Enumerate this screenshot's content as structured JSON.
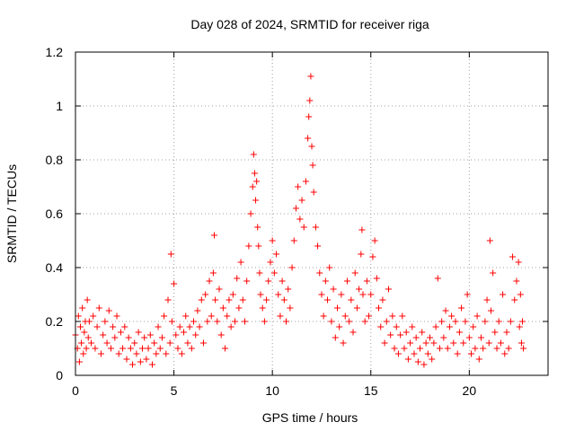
{
  "chart_data": {
    "type": "scatter",
    "title": "Day 028 of 2024, SRMTID for receiver riga",
    "xlabel": "GPS time / hours",
    "ylabel": "SRMTID / TECUs",
    "xlim": [
      0,
      24
    ],
    "ylim": [
      0,
      1.2
    ],
    "xticks": [
      0,
      5,
      10,
      15,
      20
    ],
    "xtick_labels": [
      "0",
      "5",
      "10",
      "15",
      "20"
    ],
    "yticks": [
      0,
      0.2,
      0.4,
      0.6,
      0.8,
      1,
      1.2
    ],
    "ytick_labels": [
      "0",
      "0.2",
      "0.4",
      "0.6",
      "0.8",
      "1",
      "1.2"
    ],
    "grid": true,
    "marker": "+",
    "color": "#ff0000",
    "series": [
      {
        "name": "SRMTID",
        "points": [
          [
            0.0,
            0.15
          ],
          [
            0.1,
            0.1
          ],
          [
            0.15,
            0.22
          ],
          [
            0.2,
            0.05
          ],
          [
            0.25,
            0.18
          ],
          [
            0.3,
            0.12
          ],
          [
            0.35,
            0.25
          ],
          [
            0.4,
            0.08
          ],
          [
            0.45,
            0.16
          ],
          [
            0.5,
            0.2
          ],
          [
            0.55,
            0.1
          ],
          [
            0.6,
            0.28
          ],
          [
            0.65,
            0.14
          ],
          [
            0.7,
            0.2
          ],
          [
            0.8,
            0.12
          ],
          [
            0.9,
            0.22
          ],
          [
            1.0,
            0.1
          ],
          [
            1.1,
            0.18
          ],
          [
            1.2,
            0.25
          ],
          [
            1.3,
            0.08
          ],
          [
            1.4,
            0.15
          ],
          [
            1.5,
            0.2
          ],
          [
            1.6,
            0.12
          ],
          [
            1.7,
            0.24
          ],
          [
            1.8,
            0.1
          ],
          [
            1.9,
            0.18
          ],
          [
            2.0,
            0.14
          ],
          [
            2.1,
            0.22
          ],
          [
            2.2,
            0.08
          ],
          [
            2.3,
            0.16
          ],
          [
            2.4,
            0.1
          ],
          [
            2.5,
            0.18
          ],
          [
            2.6,
            0.06
          ],
          [
            2.7,
            0.14
          ],
          [
            2.8,
            0.1
          ],
          [
            2.9,
            0.04
          ],
          [
            3.0,
            0.12
          ],
          [
            3.1,
            0.08
          ],
          [
            3.2,
            0.16
          ],
          [
            3.3,
            0.05
          ],
          [
            3.4,
            0.1
          ],
          [
            3.5,
            0.14
          ],
          [
            3.6,
            0.06
          ],
          [
            3.7,
            0.1
          ],
          [
            3.8,
            0.15
          ],
          [
            3.9,
            0.04
          ],
          [
            4.0,
            0.12
          ],
          [
            4.1,
            0.08
          ],
          [
            4.2,
            0.18
          ],
          [
            4.3,
            0.1
          ],
          [
            4.4,
            0.14
          ],
          [
            4.5,
            0.22
          ],
          [
            4.6,
            0.08
          ],
          [
            4.7,
            0.28
          ],
          [
            4.8,
            0.12
          ],
          [
            4.85,
            0.45
          ],
          [
            4.9,
            0.2
          ],
          [
            5.0,
            0.34
          ],
          [
            5.1,
            0.15
          ],
          [
            5.2,
            0.1
          ],
          [
            5.3,
            0.18
          ],
          [
            5.4,
            0.08
          ],
          [
            5.5,
            0.16
          ],
          [
            5.6,
            0.22
          ],
          [
            5.7,
            0.12
          ],
          [
            5.8,
            0.18
          ],
          [
            5.9,
            0.1
          ],
          [
            6.0,
            0.2
          ],
          [
            6.1,
            0.15
          ],
          [
            6.2,
            0.24
          ],
          [
            6.3,
            0.18
          ],
          [
            6.4,
            0.28
          ],
          [
            6.5,
            0.12
          ],
          [
            6.6,
            0.3
          ],
          [
            6.7,
            0.2
          ],
          [
            6.8,
            0.35
          ],
          [
            6.9,
            0.22
          ],
          [
            7.0,
            0.38
          ],
          [
            7.05,
            0.52
          ],
          [
            7.1,
            0.28
          ],
          [
            7.2,
            0.2
          ],
          [
            7.3,
            0.32
          ],
          [
            7.4,
            0.15
          ],
          [
            7.5,
            0.25
          ],
          [
            7.6,
            0.1
          ],
          [
            7.7,
            0.22
          ],
          [
            7.8,
            0.28
          ],
          [
            7.9,
            0.18
          ],
          [
            8.0,
            0.3
          ],
          [
            8.1,
            0.2
          ],
          [
            8.2,
            0.36
          ],
          [
            8.3,
            0.25
          ],
          [
            8.4,
            0.42
          ],
          [
            8.5,
            0.28
          ],
          [
            8.6,
            0.2
          ],
          [
            8.7,
            0.35
          ],
          [
            8.8,
            0.48
          ],
          [
            8.9,
            0.6
          ],
          [
            9.0,
            0.7
          ],
          [
            9.05,
            0.82
          ],
          [
            9.1,
            0.75
          ],
          [
            9.15,
            0.65
          ],
          [
            9.2,
            0.72
          ],
          [
            9.25,
            0.55
          ],
          [
            9.3,
            0.48
          ],
          [
            9.35,
            0.38
          ],
          [
            9.4,
            0.3
          ],
          [
            9.5,
            0.25
          ],
          [
            9.6,
            0.2
          ],
          [
            9.7,
            0.28
          ],
          [
            9.8,
            0.35
          ],
          [
            9.9,
            0.42
          ],
          [
            10.0,
            0.5
          ],
          [
            10.1,
            0.38
          ],
          [
            10.2,
            0.45
          ],
          [
            10.3,
            0.3
          ],
          [
            10.4,
            0.22
          ],
          [
            10.5,
            0.35
          ],
          [
            10.6,
            0.28
          ],
          [
            10.7,
            0.2
          ],
          [
            10.8,
            0.32
          ],
          [
            10.9,
            0.25
          ],
          [
            11.0,
            0.4
          ],
          [
            11.1,
            0.5
          ],
          [
            11.2,
            0.62
          ],
          [
            11.3,
            0.7
          ],
          [
            11.4,
            0.58
          ],
          [
            11.5,
            0.65
          ],
          [
            11.6,
            0.55
          ],
          [
            11.7,
            0.72
          ],
          [
            11.8,
            0.88
          ],
          [
            11.85,
            0.96
          ],
          [
            11.9,
            1.02
          ],
          [
            11.95,
            1.11
          ],
          [
            12.0,
            0.85
          ],
          [
            12.05,
            0.78
          ],
          [
            12.1,
            0.68
          ],
          [
            12.2,
            0.55
          ],
          [
            12.3,
            0.48
          ],
          [
            12.4,
            0.38
          ],
          [
            12.5,
            0.3
          ],
          [
            12.6,
            0.22
          ],
          [
            12.7,
            0.35
          ],
          [
            12.8,
            0.28
          ],
          [
            12.9,
            0.4
          ],
          [
            13.0,
            0.2
          ],
          [
            13.1,
            0.32
          ],
          [
            13.2,
            0.14
          ],
          [
            13.3,
            0.25
          ],
          [
            13.4,
            0.18
          ],
          [
            13.5,
            0.3
          ],
          [
            13.6,
            0.12
          ],
          [
            13.7,
            0.22
          ],
          [
            13.8,
            0.35
          ],
          [
            13.9,
            0.2
          ],
          [
            14.0,
            0.28
          ],
          [
            14.1,
            0.16
          ],
          [
            14.2,
            0.38
          ],
          [
            14.3,
            0.25
          ],
          [
            14.4,
            0.32
          ],
          [
            14.5,
            0.45
          ],
          [
            14.55,
            0.54
          ],
          [
            14.6,
            0.3
          ],
          [
            14.7,
            0.2
          ],
          [
            14.8,
            0.35
          ],
          [
            14.9,
            0.22
          ],
          [
            15.0,
            0.3
          ],
          [
            15.1,
            0.44
          ],
          [
            15.2,
            0.5
          ],
          [
            15.3,
            0.36
          ],
          [
            15.4,
            0.25
          ],
          [
            15.5,
            0.18
          ],
          [
            15.6,
            0.28
          ],
          [
            15.7,
            0.12
          ],
          [
            15.8,
            0.2
          ],
          [
            15.9,
            0.32
          ],
          [
            16.0,
            0.15
          ],
          [
            16.1,
            0.22
          ],
          [
            16.2,
            0.1
          ],
          [
            16.3,
            0.18
          ],
          [
            16.4,
            0.08
          ],
          [
            16.5,
            0.15
          ],
          [
            16.6,
            0.22
          ],
          [
            16.7,
            0.1
          ],
          [
            16.8,
            0.16
          ],
          [
            16.9,
            0.06
          ],
          [
            17.0,
            0.12
          ],
          [
            17.1,
            0.18
          ],
          [
            17.2,
            0.08
          ],
          [
            17.3,
            0.14
          ],
          [
            17.4,
            0.05
          ],
          [
            17.5,
            0.1
          ],
          [
            17.6,
            0.16
          ],
          [
            17.7,
            0.04
          ],
          [
            17.8,
            0.12
          ],
          [
            17.9,
            0.08
          ],
          [
            18.0,
            0.14
          ],
          [
            18.1,
            0.06
          ],
          [
            18.2,
            0.12
          ],
          [
            18.3,
            0.18
          ],
          [
            18.4,
            0.36
          ],
          [
            18.5,
            0.1
          ],
          [
            18.6,
            0.2
          ],
          [
            18.7,
            0.14
          ],
          [
            18.8,
            0.24
          ],
          [
            18.9,
            0.1
          ],
          [
            19.0,
            0.18
          ],
          [
            19.1,
            0.22
          ],
          [
            19.2,
            0.12
          ],
          [
            19.3,
            0.2
          ],
          [
            19.4,
            0.08
          ],
          [
            19.5,
            0.16
          ],
          [
            19.6,
            0.25
          ],
          [
            19.7,
            0.12
          ],
          [
            19.8,
            0.2
          ],
          [
            19.9,
            0.3
          ],
          [
            20.0,
            0.14
          ],
          [
            20.1,
            0.08
          ],
          [
            20.2,
            0.18
          ],
          [
            20.3,
            0.1
          ],
          [
            20.4,
            0.22
          ],
          [
            20.5,
            0.06
          ],
          [
            20.6,
            0.14
          ],
          [
            20.7,
            0.1
          ],
          [
            20.8,
            0.2
          ],
          [
            20.9,
            0.28
          ],
          [
            21.0,
            0.12
          ],
          [
            21.05,
            0.5
          ],
          [
            21.1,
            0.24
          ],
          [
            21.2,
            0.38
          ],
          [
            21.3,
            0.16
          ],
          [
            21.4,
            0.1
          ],
          [
            21.5,
            0.2
          ],
          [
            21.6,
            0.12
          ],
          [
            21.7,
            0.3
          ],
          [
            21.8,
            0.08
          ],
          [
            21.9,
            0.16
          ],
          [
            22.0,
            0.1
          ],
          [
            22.1,
            0.2
          ],
          [
            22.2,
            0.44
          ],
          [
            22.3,
            0.28
          ],
          [
            22.4,
            0.35
          ],
          [
            22.5,
            0.42
          ],
          [
            22.55,
            0.18
          ],
          [
            22.6,
            0.3
          ],
          [
            22.65,
            0.12
          ],
          [
            22.7,
            0.2
          ],
          [
            22.75,
            0.1
          ]
        ]
      }
    ]
  }
}
